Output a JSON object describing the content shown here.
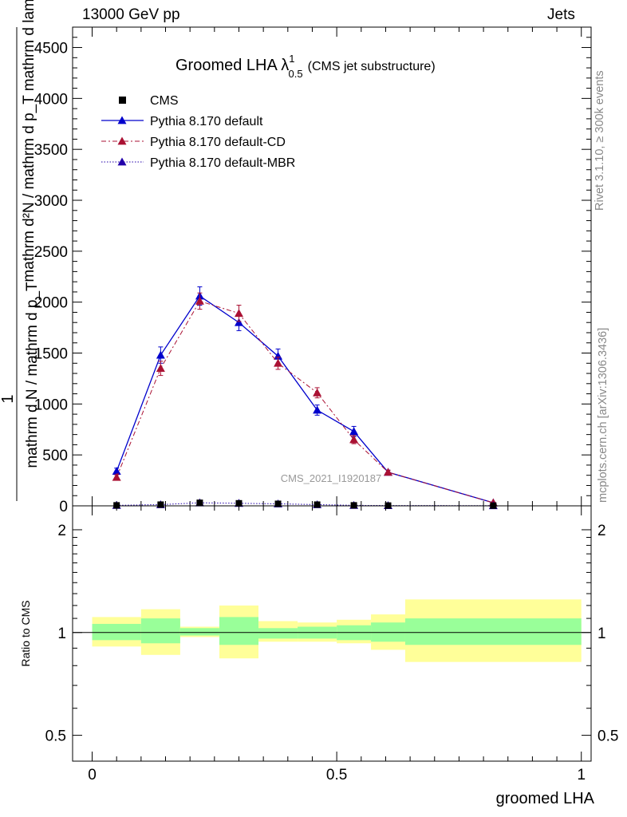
{
  "header": {
    "left": "13000 GeV pp",
    "right": "Jets"
  },
  "side_labels": {
    "rivet": "Rivet 3.1.10, ≥ 300k events",
    "mcplots": "mcplots.cern.ch [arXiv:1306.3436]"
  },
  "chart_data": {
    "type": "line",
    "title_main": "Groomed LHA λ",
    "title_sup": "1",
    "title_sub": "0.5",
    "title_suffix": "(CMS jet substructure)",
    "ylabel_num": "1",
    "ylabel_den": "mathrm d N / mathrm d p_T",
    "ylabel_overlay": "mathrm d²N / mathrm d p_T mathrm d lambda",
    "xlabel": "groomed LHA",
    "ylabel_ratio": "Ratio to CMS",
    "watermark": "CMS_2021_I1920187",
    "xlim": [
      -0.04,
      1.02
    ],
    "ylim": [
      0,
      4700
    ],
    "ratio_ylim": [
      0.42,
      2.35
    ],
    "x_ticks": [
      0,
      0.5,
      1
    ],
    "x_tick_labels": [
      "0",
      "0.5",
      "1"
    ],
    "y_ticks": [
      0,
      500,
      1000,
      1500,
      2000,
      2500,
      3000,
      3500,
      4000,
      4500
    ],
    "y_tick_labels": [
      "0",
      "500",
      "1000",
      "1500",
      "2000",
      "2500",
      "3000",
      "3500",
      "4000",
      "4500"
    ],
    "ratio_ticks": [
      0.5,
      1,
      2
    ],
    "ratio_tick_labels": [
      "0.5",
      "1",
      "2"
    ],
    "bins": [
      {
        "lo": 0.0,
        "hi": 0.1,
        "x": 0.05
      },
      {
        "lo": 0.1,
        "hi": 0.18,
        "x": 0.14
      },
      {
        "lo": 0.18,
        "hi": 0.26,
        "x": 0.22
      },
      {
        "lo": 0.26,
        "hi": 0.34,
        "x": 0.3
      },
      {
        "lo": 0.34,
        "hi": 0.42,
        "x": 0.38
      },
      {
        "lo": 0.42,
        "hi": 0.5,
        "x": 0.46
      },
      {
        "lo": 0.5,
        "hi": 0.57,
        "x": 0.535
      },
      {
        "lo": 0.57,
        "hi": 0.64,
        "x": 0.605
      },
      {
        "lo": 0.64,
        "hi": 1.0,
        "x": 0.82
      }
    ],
    "cms": [
      5,
      12,
      30,
      25,
      20,
      12,
      5,
      3,
      2
    ],
    "series": [
      {
        "name": "Pythia 8.170 default",
        "color": "#0000cc",
        "dash": "",
        "marker": "triangle",
        "values": [
          340,
          1480,
          2060,
          1800,
          1470,
          940,
          730,
          330,
          30
        ],
        "errors": [
          30,
          80,
          90,
          80,
          70,
          50,
          50,
          20,
          5
        ]
      },
      {
        "name": "Pythia 8.170 default-CD",
        "color": "#aa1133",
        "dash": "6,3,2,3",
        "marker": "triangle",
        "values": [
          280,
          1350,
          2010,
          1890,
          1400,
          1110,
          650,
          330,
          30
        ],
        "errors": [
          25,
          70,
          80,
          80,
          60,
          50,
          40,
          20,
          5
        ]
      },
      {
        "name": "Pythia 8.170 default-MBR",
        "color": "#2200aa",
        "dash": "1.5,2",
        "marker": "triangle",
        "values": [
          5,
          12,
          30,
          25,
          20,
          12,
          5,
          3,
          2
        ],
        "errors": [
          1,
          2,
          3,
          3,
          2,
          2,
          1,
          1,
          1
        ]
      }
    ],
    "ratio_bands": [
      {
        "inner": [
          0.95,
          1.06
        ],
        "outer": [
          0.91,
          1.11
        ]
      },
      {
        "inner": [
          0.93,
          1.1
        ],
        "outer": [
          0.86,
          1.17
        ]
      },
      {
        "inner": [
          0.98,
          1.03
        ],
        "outer": [
          0.97,
          1.04
        ]
      },
      {
        "inner": [
          0.92,
          1.11
        ],
        "outer": [
          0.84,
          1.2
        ]
      },
      {
        "inner": [
          0.96,
          1.03
        ],
        "outer": [
          0.94,
          1.08
        ]
      },
      {
        "inner": [
          0.96,
          1.04
        ],
        "outer": [
          0.94,
          1.07
        ]
      },
      {
        "inner": [
          0.95,
          1.05
        ],
        "outer": [
          0.93,
          1.09
        ]
      },
      {
        "inner": [
          0.94,
          1.07
        ],
        "outer": [
          0.89,
          1.13
        ]
      },
      {
        "inner": [
          0.92,
          1.1
        ],
        "outer": [
          0.82,
          1.25
        ]
      }
    ],
    "legend_cms": "CMS",
    "colors": {
      "band_inner": "#99ff99",
      "band_outer": "#ffff99"
    }
  }
}
